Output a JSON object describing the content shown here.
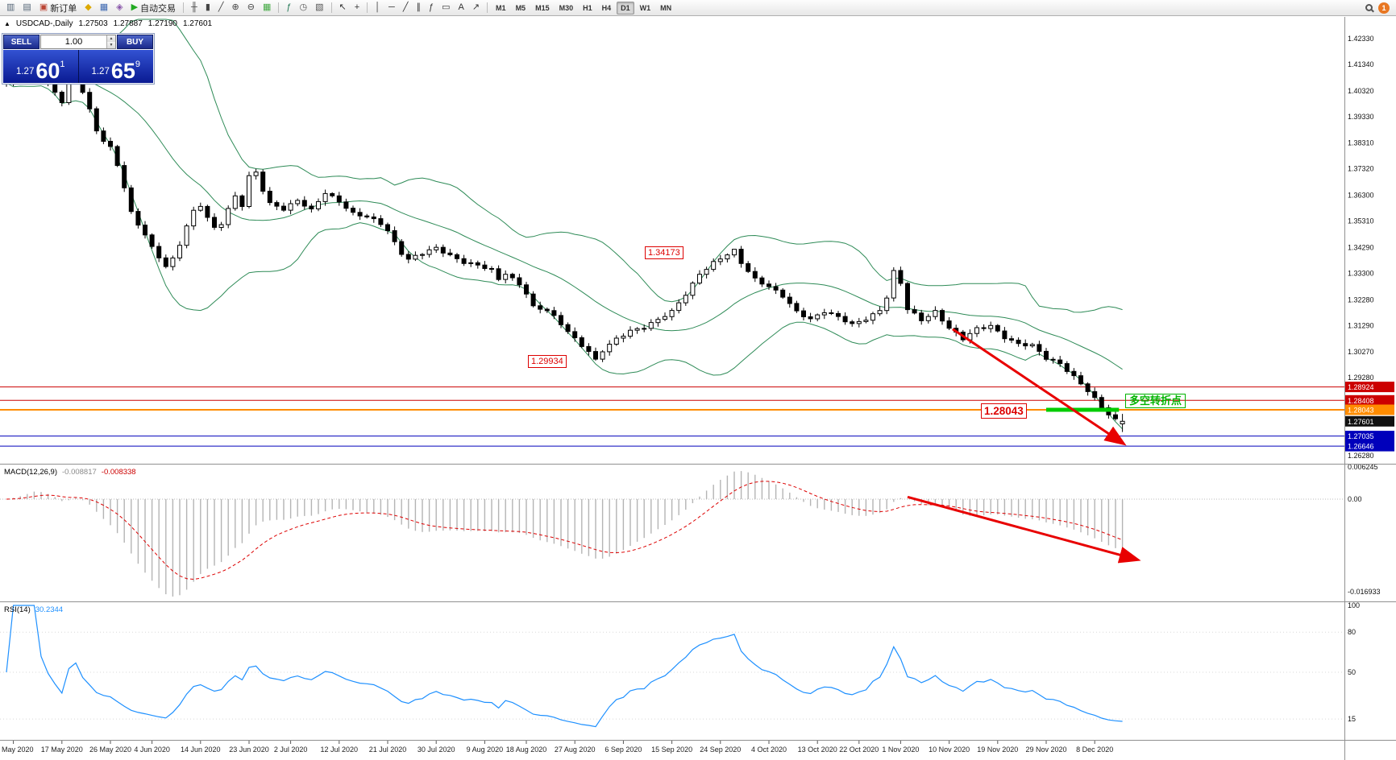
{
  "toolbar": {
    "notification_count": "1",
    "items": [
      {
        "type": "btn",
        "name": "new-chart-icon",
        "glyph": "▥",
        "color": "#556677"
      },
      {
        "type": "btn",
        "name": "chart-profiles-icon",
        "glyph": "▤",
        "color": "#556677"
      },
      {
        "type": "btn",
        "name": "new-order-button",
        "glyph": "▣",
        "color": "#bb4433",
        "label": "新订单"
      },
      {
        "type": "btn",
        "name": "metaeditor-icon",
        "glyph": "◆",
        "color": "#dda900"
      },
      {
        "type": "btn",
        "name": "terminal-icon",
        "glyph": "▦",
        "color": "#3a66b0"
      },
      {
        "type": "btn",
        "name": "strategy-tester-icon",
        "glyph": "◈",
        "color": "#8855aa"
      },
      {
        "type": "btn",
        "name": "auto-trading-button",
        "glyph": "▶",
        "color": "#22aa22",
        "label": "自动交易"
      },
      {
        "type": "sep"
      },
      {
        "type": "btn",
        "name": "ohlc-bars-icon",
        "glyph": "╫",
        "color": "#444444"
      },
      {
        "type": "btn",
        "name": "candlestick-chart-icon",
        "glyph": "▮",
        "color": "#444444"
      },
      {
        "type": "btn",
        "name": "line-chart-icon",
        "glyph": "╱",
        "color": "#444444"
      },
      {
        "type": "btn",
        "name": "zoom-in-icon",
        "glyph": "⊕",
        "color": "#444444"
      },
      {
        "type": "btn",
        "name": "zoom-out-icon",
        "glyph": "⊖",
        "color": "#444444"
      },
      {
        "type": "btn",
        "name": "tile-windows-icon",
        "glyph": "▦",
        "color": "#44aa44"
      },
      {
        "type": "sep"
      },
      {
        "type": "btn",
        "name": "indicators-icon",
        "glyph": "ƒ",
        "color": "#227755"
      },
      {
        "type": "btn",
        "name": "periods-icon",
        "glyph": "◷",
        "color": "#555555"
      },
      {
        "type": "btn",
        "name": "templates-icon",
        "glyph": "▧",
        "color": "#555555"
      },
      {
        "type": "sep"
      },
      {
        "type": "btn",
        "name": "cursor-icon",
        "glyph": "↖",
        "color": "#333333"
      },
      {
        "type": "btn",
        "name": "crosshair-icon",
        "glyph": "+",
        "color": "#333333"
      },
      {
        "type": "sep"
      },
      {
        "type": "btn",
        "name": "vertical-line-icon",
        "glyph": "│",
        "color": "#333333"
      },
      {
        "type": "btn",
        "name": "horizontal-line-icon",
        "glyph": "─",
        "color": "#333333"
      },
      {
        "type": "btn",
        "name": "trendline-icon",
        "glyph": "╱",
        "color": "#333333"
      },
      {
        "type": "btn",
        "name": "equidistant-channel-icon",
        "glyph": "∥",
        "color": "#333333"
      },
      {
        "type": "btn",
        "name": "fibonacci-icon",
        "glyph": "ƒ",
        "color": "#333333"
      },
      {
        "type": "btn",
        "name": "shapes-icon",
        "glyph": "▭",
        "color": "#333333"
      },
      {
        "type": "btn",
        "name": "text-icon",
        "glyph": "A",
        "color": "#333333"
      },
      {
        "type": "btn",
        "name": "arrows-icon",
        "glyph": "↗",
        "color": "#333333"
      },
      {
        "type": "sep"
      },
      {
        "type": "tf",
        "name": "timeframe-m1",
        "label": "M1"
      },
      {
        "type": "tf",
        "name": "timeframe-m5",
        "label": "M5"
      },
      {
        "type": "tf",
        "name": "timeframe-m15",
        "label": "M15"
      },
      {
        "type": "tf",
        "name": "timeframe-m30",
        "label": "M30"
      },
      {
        "type": "tf",
        "name": "timeframe-h1",
        "label": "H1"
      },
      {
        "type": "tf",
        "name": "timeframe-h4",
        "label": "H4"
      },
      {
        "type": "tf",
        "name": "timeframe-d1",
        "label": "D1",
        "active": true
      },
      {
        "type": "tf",
        "name": "timeframe-w1",
        "label": "W1"
      },
      {
        "type": "tf",
        "name": "timeframe-mn",
        "label": "MN"
      }
    ]
  },
  "title": {
    "collapse": "▲",
    "symbol": "USDCAD-,Daily",
    "open": "1.27503",
    "high": "1.27887",
    "low": "1.27190",
    "close": "1.27601"
  },
  "trade_panel": {
    "sell_label": "SELL",
    "buy_label": "BUY",
    "volume": "1.00",
    "spin_up": "▲",
    "spin_down": "▼",
    "sell_small": "1.27",
    "sell_big": "60",
    "sell_sup": "1",
    "buy_small": "1.27",
    "buy_big": "65",
    "buy_sup": "9"
  },
  "annotations": {
    "peak": "1.34173",
    "low": "1.29934",
    "pivot": "1.28043",
    "note": "多空转折点"
  },
  "indicators": {
    "macd": {
      "name": "MACD(12,26,9)",
      "value_main": "-0.008817",
      "value_signal": "-0.008338",
      "axis": [
        "0.006245",
        "0.00",
        "-0.016933"
      ]
    },
    "rsi": {
      "name": "RSI(14)",
      "value": "30.2344",
      "axis": [
        "100",
        "80",
        "50",
        "15"
      ]
    }
  },
  "price_axis": {
    "ticks": [
      "1.42330",
      "1.41340",
      "1.40320",
      "1.39330",
      "1.38310",
      "1.37320",
      "1.36300",
      "1.35310",
      "1.34290",
      "1.33300",
      "1.32280",
      "1.31290",
      "1.30270",
      "1.29280",
      "1.26280"
    ],
    "tags": [
      {
        "value": "1.28924",
        "bg": "#cc0000"
      },
      {
        "value": "1.28408",
        "bg": "#cc0000"
      },
      {
        "value": "1.28043",
        "bg": "#ff8c00"
      },
      {
        "value": "1.27601",
        "bg": "#111111"
      },
      {
        "value": "1.27035",
        "bg": "#0000bb"
      },
      {
        "value": "1.26646",
        "bg": "#0000bb"
      }
    ]
  },
  "date_axis": [
    {
      "label": "May 2020",
      "i": 1
    },
    {
      "label": "17 May 2020",
      "i": 8
    },
    {
      "label": "26 May 2020",
      "i": 15
    },
    {
      "label": "4 Jun 2020",
      "i": 21
    },
    {
      "label": "14 Jun 2020",
      "i": 28
    },
    {
      "label": "23 Jun 2020",
      "i": 35
    },
    {
      "label": "2 Jul 2020",
      "i": 41
    },
    {
      "label": "12 Jul 2020",
      "i": 48
    },
    {
      "label": "21 Jul 2020",
      "i": 55
    },
    {
      "label": "30 Jul 2020",
      "i": 62
    },
    {
      "label": "9 Aug 2020",
      "i": 69
    },
    {
      "label": "18 Aug 2020",
      "i": 75
    },
    {
      "label": "27 Aug 2020",
      "i": 82
    },
    {
      "label": "6 Sep 2020",
      "i": 89
    },
    {
      "label": "15 Sep 2020",
      "i": 96
    },
    {
      "label": "24 Sep 2020",
      "i": 103
    },
    {
      "label": "4 Oct 2020",
      "i": 110
    },
    {
      "label": "13 Oct 2020",
      "i": 117
    },
    {
      "label": "22 Oct 2020",
      "i": 123
    },
    {
      "label": "1 Nov 2020",
      "i": 129
    },
    {
      "label": "10 Nov 2020",
      "i": 136
    },
    {
      "label": "19 Nov 2020",
      "i": 143
    },
    {
      "label": "29 Nov 2020",
      "i": 150
    },
    {
      "label": "8 Dec 2020",
      "i": 157
    }
  ],
  "chart_data": {
    "type": "candlestick",
    "symbol": "USDCAD",
    "timeframe": "Daily",
    "candle_count": 162,
    "ylim": [
      1.2628,
      1.4233
    ],
    "price_anchors": [
      [
        0,
        1.406
      ],
      [
        2,
        1.411
      ],
      [
        4,
        1.4145
      ],
      [
        6,
        1.406
      ],
      [
        8,
        1.399
      ],
      [
        9,
        1.4075
      ],
      [
        10,
        1.411
      ],
      [
        11,
        1.403
      ],
      [
        12,
        1.396
      ],
      [
        13,
        1.388
      ],
      [
        14,
        1.3845
      ],
      [
        15,
        1.3815
      ],
      [
        16,
        1.3745
      ],
      [
        17,
        1.366
      ],
      [
        18,
        1.356
      ],
      [
        19,
        1.3515
      ],
      [
        20,
        1.348
      ],
      [
        21,
        1.343
      ],
      [
        22,
        1.3395
      ],
      [
        23,
        1.336
      ],
      [
        24,
        1.3385
      ],
      [
        25,
        1.344
      ],
      [
        26,
        1.351
      ],
      [
        27,
        1.3565
      ],
      [
        28,
        1.359
      ],
      [
        29,
        1.3545
      ],
      [
        30,
        1.3505
      ],
      [
        31,
        1.3525
      ],
      [
        32,
        1.358
      ],
      [
        33,
        1.3625
      ],
      [
        34,
        1.359
      ],
      [
        35,
        1.37
      ],
      [
        36,
        1.3715
      ],
      [
        37,
        1.365
      ],
      [
        38,
        1.36
      ],
      [
        40,
        1.358
      ],
      [
        42,
        1.361
      ],
      [
        44,
        1.357
      ],
      [
        46,
        1.364
      ],
      [
        48,
        1.361
      ],
      [
        50,
        1.356
      ],
      [
        52,
        1.3545
      ],
      [
        54,
        1.352
      ],
      [
        55,
        1.3495
      ],
      [
        56,
        1.345
      ],
      [
        57,
        1.341
      ],
      [
        58,
        1.3385
      ],
      [
        60,
        1.3405
      ],
      [
        62,
        1.3425
      ],
      [
        64,
        1.34
      ],
      [
        66,
        1.3375
      ],
      [
        68,
        1.336
      ],
      [
        70,
        1.334
      ],
      [
        71,
        1.3305
      ],
      [
        72,
        1.333
      ],
      [
        74,
        1.329
      ],
      [
        75,
        1.3255
      ],
      [
        76,
        1.32
      ],
      [
        78,
        1.3185
      ],
      [
        80,
        1.3135
      ],
      [
        82,
        1.308
      ],
      [
        84,
        1.303
      ],
      [
        85,
        1.2995
      ],
      [
        86,
        1.303
      ],
      [
        88,
        1.3075
      ],
      [
        90,
        1.311
      ],
      [
        92,
        1.3125
      ],
      [
        94,
        1.315
      ],
      [
        96,
        1.318
      ],
      [
        98,
        1.325
      ],
      [
        100,
        1.333
      ],
      [
        102,
        1.337
      ],
      [
        104,
        1.34
      ],
      [
        105,
        1.3415
      ],
      [
        106,
        1.337
      ],
      [
        108,
        1.331
      ],
      [
        110,
        1.328
      ],
      [
        112,
        1.324
      ],
      [
        114,
        1.318
      ],
      [
        116,
        1.3155
      ],
      [
        118,
        1.3185
      ],
      [
        120,
        1.316
      ],
      [
        122,
        1.313
      ],
      [
        124,
        1.3155
      ],
      [
        126,
        1.319
      ],
      [
        127,
        1.324
      ],
      [
        128,
        1.3335
      ],
      [
        129,
        1.329
      ],
      [
        130,
        1.319
      ],
      [
        132,
        1.315
      ],
      [
        134,
        1.3185
      ],
      [
        136,
        1.312
      ],
      [
        138,
        1.3075
      ],
      [
        140,
        1.3115
      ],
      [
        142,
        1.313
      ],
      [
        144,
        1.3085
      ],
      [
        146,
        1.3055
      ],
      [
        148,
        1.305
      ],
      [
        150,
        1.3005
      ],
      [
        152,
        1.2985
      ],
      [
        154,
        1.293
      ],
      [
        156,
        1.2875
      ],
      [
        158,
        1.2815
      ],
      [
        159,
        1.279
      ],
      [
        160,
        1.2768
      ],
      [
        161,
        1.276
      ]
    ],
    "last_candle": {
      "open": 1.27503,
      "high": 1.27887,
      "low": 1.2719,
      "close": 1.27601
    },
    "marked_high": {
      "index": 105,
      "price": 1.34173
    },
    "marked_low": {
      "index": 85,
      "price": 1.29934
    },
    "overlays": {
      "bollinger": {
        "period": 20,
        "deviation": 2,
        "color": "#2e8b57"
      }
    },
    "horizontal_lines": [
      {
        "price": 1.28924,
        "color": "#cc0000",
        "width": 1
      },
      {
        "price": 1.28408,
        "color": "#cc0000",
        "width": 1
      },
      {
        "price": 1.28043,
        "color": "#ff8c00",
        "width": 2
      },
      {
        "price": 1.27035,
        "color": "#0000bb",
        "width": 1
      },
      {
        "price": 1.26646,
        "color": "#0000bb",
        "width": 1
      }
    ],
    "pivot_segment": {
      "from_index": 150,
      "to_index": 160.5,
      "price": 1.28043,
      "color": "#00cc00"
    },
    "trend_arrows": [
      {
        "panel": "main",
        "from": [
          136.5,
          1.3115
        ],
        "to": [
          161,
          1.2677
        ]
      },
      {
        "panel": "macd",
        "from": [
          130,
          0.0004
        ],
        "to": [
          163,
          -0.011
        ]
      }
    ],
    "indicator_settings": [
      {
        "type": "macd",
        "fast": 12,
        "slow": 26,
        "signal": 9,
        "axis_range": [
          -0.016933,
          0.006245
        ]
      },
      {
        "type": "rsi",
        "period": 14,
        "last": 30.2344,
        "levels": [
          15,
          50,
          80
        ]
      }
    ]
  }
}
